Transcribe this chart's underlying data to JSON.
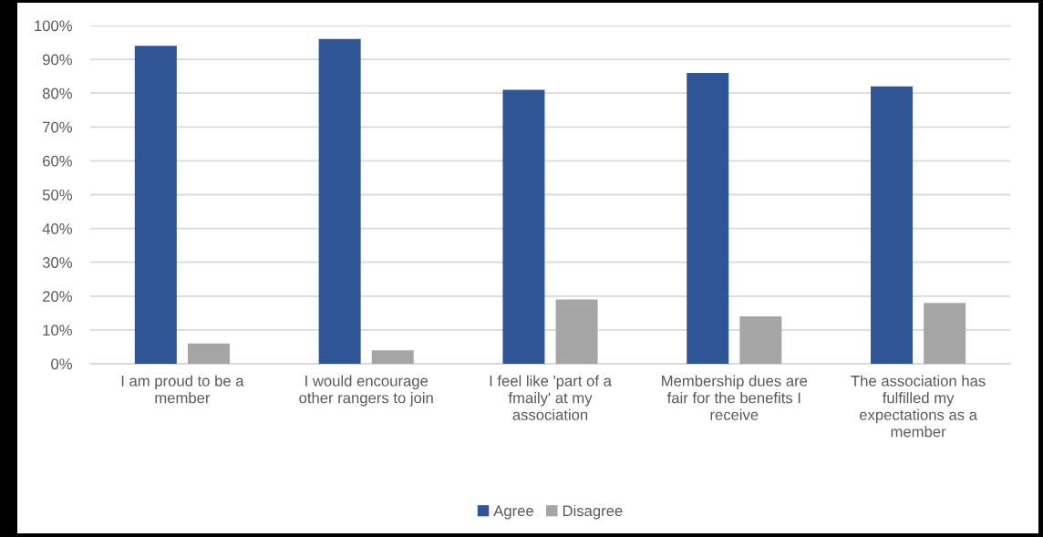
{
  "chart_data": {
    "type": "bar",
    "categories": [
      "I am proud to be a\nmember",
      "I would encourage\nother rangers to join",
      "I feel like 'part of a\nfmaily' at my\nassociation",
      "Membership dues are\nfair for the benefits I\nreceive",
      "The association has\nfulfilled my\nexpectations as a\nmember"
    ],
    "series": [
      {
        "name": "Agree",
        "color": "#2f5597",
        "values": [
          94,
          96,
          81,
          86,
          82
        ]
      },
      {
        "name": "Disagree",
        "color": "#a5a5a5",
        "values": [
          6,
          4,
          19,
          14,
          18
        ]
      }
    ],
    "ylim": [
      0,
      100
    ],
    "yticks": [
      {
        "value": 0,
        "label": "0%"
      },
      {
        "value": 10,
        "label": "10%"
      },
      {
        "value": 20,
        "label": "20%"
      },
      {
        "value": 30,
        "label": "30%"
      },
      {
        "value": 40,
        "label": "40%"
      },
      {
        "value": 50,
        "label": "50%"
      },
      {
        "value": 60,
        "label": "60%"
      },
      {
        "value": 70,
        "label": "70%"
      },
      {
        "value": 80,
        "label": "80%"
      },
      {
        "value": 90,
        "label": "90%"
      },
      {
        "value": 100,
        "label": "100%"
      }
    ],
    "grid": "y",
    "legend": "bottom"
  }
}
